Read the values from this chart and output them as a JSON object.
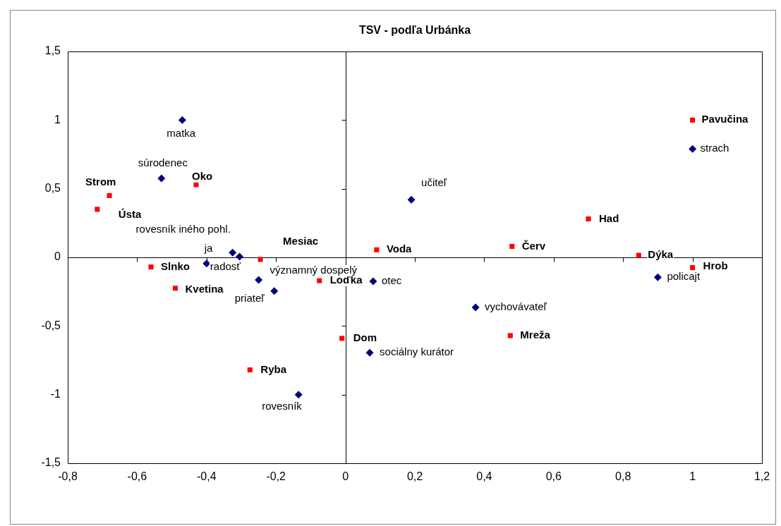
{
  "chart_data": {
    "type": "scatter",
    "title": "TSV - podľa Urbánka",
    "xlim": [
      -0.8,
      1.2
    ],
    "xticks": [
      {
        "value": -0.8,
        "label": "-0,8"
      },
      {
        "value": -0.6,
        "label": "-0,6"
      },
      {
        "value": -0.4,
        "label": "-0,4"
      },
      {
        "value": -0.2,
        "label": "-0,2"
      },
      0,
      {
        "value": 0.2,
        "label": "0,2"
      },
      {
        "value": 0.4,
        "label": "0,4"
      },
      {
        "value": 0.6,
        "label": "0,6"
      },
      {
        "value": 0.8,
        "label": "0,8"
      },
      1,
      {
        "value": 1.2,
        "label": "1,2"
      }
    ],
    "ylim": [
      -1.5,
      1.5
    ],
    "yticks": [
      {
        "value": -1.5,
        "label": "-1,5"
      },
      -1,
      {
        "value": -0.5,
        "label": "-0,5"
      },
      0,
      {
        "value": 0.5,
        "label": "0,5"
      },
      1,
      {
        "value": 1.5,
        "label": "1,5"
      }
    ],
    "legend": false,
    "series": [
      {
        "color": "#ff0000",
        "marker": "square",
        "x": [
          1.0,
          -0.68,
          -0.715,
          -0.43,
          0.7,
          0.48,
          0.09,
          -0.245,
          0.845,
          1.0,
          -0.56,
          -0.49,
          -0.075,
          -0.01,
          0.475,
          -0.275
        ],
        "values": [
          1.0,
          0.45,
          0.35,
          0.53,
          0.28,
          0.08,
          0.055,
          -0.015,
          0.015,
          -0.075,
          -0.07,
          -0.225,
          -0.17,
          -0.59,
          -0.57,
          -0.82
        ],
        "value_labels": [
          "Pavučina",
          "Strom",
          "Ústa",
          "Oko",
          "Had",
          "Červ",
          "Voda",
          "Mesiac",
          "Dýka",
          "Hrob",
          "Slnko",
          "Kvetina",
          "Loďka",
          "Dom",
          "Mreža",
          "Ryba"
        ]
      },
      {
        "color": "#000080",
        "marker": "diamond",
        "x": [
          -0.47,
          -0.53,
          0.19,
          1.0,
          -0.325,
          -0.305,
          -0.4,
          -0.25,
          -0.205,
          0.08,
          0.9,
          0.375,
          0.07,
          -0.135
        ],
        "values": [
          1.0,
          0.575,
          0.42,
          0.79,
          0.035,
          0.005,
          -0.045,
          -0.165,
          -0.245,
          -0.175,
          -0.145,
          -0.365,
          -0.695,
          -1.0
        ],
        "value_labels": [
          "matka",
          "súrodenec",
          "učiteľ",
          "strach",
          "ja",
          "rovesník iného pohl.",
          "radosť",
          "významný dospelý",
          "priateľ",
          "otec",
          "policajt",
          "vychovávateľ",
          "sociálny kurátor",
          "rovesník"
        ]
      }
    ]
  }
}
